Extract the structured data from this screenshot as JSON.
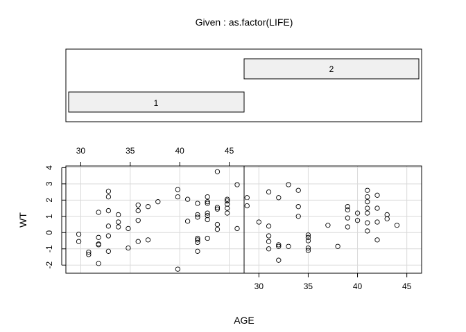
{
  "chart_data": {
    "type": "scatter",
    "title": "Given : as.factor(LIFE)",
    "xlabel": "AGE",
    "ylabel": "WT",
    "grid": true,
    "xlim": [
      28.5,
      46.5
    ],
    "ylim": [
      -2.5,
      4.1
    ],
    "x_ticks": [
      30,
      35,
      40,
      45
    ],
    "y_ticks": [
      -2,
      -1,
      0,
      1,
      2,
      3,
      4
    ],
    "conditioning": {
      "levels": [
        {
          "label": "1",
          "range_index": 0
        },
        {
          "label": "2",
          "range_index": 1
        }
      ]
    },
    "panels": [
      {
        "given": "1",
        "points": [
          [
            29.8,
            -0.1
          ],
          [
            29.8,
            -0.55
          ],
          [
            30.8,
            -1.2
          ],
          [
            30.8,
            -1.35
          ],
          [
            31.8,
            1.25
          ],
          [
            31.8,
            -0.3
          ],
          [
            31.8,
            -0.7
          ],
          [
            31.8,
            -0.75
          ],
          [
            31.8,
            -1.9
          ],
          [
            32.8,
            2.55
          ],
          [
            32.8,
            2.2
          ],
          [
            32.8,
            1.35
          ],
          [
            32.8,
            0.4
          ],
          [
            32.8,
            -0.2
          ],
          [
            32.8,
            -1.15
          ],
          [
            33.8,
            1.1
          ],
          [
            33.8,
            0.65
          ],
          [
            33.8,
            0.35
          ],
          [
            34.8,
            0.25
          ],
          [
            34.8,
            -0.95
          ],
          [
            35.8,
            1.7
          ],
          [
            35.8,
            1.35
          ],
          [
            35.8,
            0.75
          ],
          [
            35.8,
            -0.55
          ],
          [
            36.8,
            1.6
          ],
          [
            36.8,
            -0.45
          ],
          [
            37.8,
            1.9
          ],
          [
            39.8,
            2.65
          ],
          [
            39.8,
            2.2
          ],
          [
            39.8,
            -2.25
          ],
          [
            40.8,
            2.05
          ],
          [
            40.8,
            0.7
          ],
          [
            41.8,
            1.8
          ],
          [
            41.8,
            1.1
          ],
          [
            41.8,
            0.95
          ],
          [
            41.8,
            -0.35
          ],
          [
            41.8,
            -0.45
          ],
          [
            41.8,
            -0.6
          ],
          [
            41.8,
            -1.15
          ],
          [
            42.8,
            2.2
          ],
          [
            42.8,
            1.9
          ],
          [
            42.8,
            1.8
          ],
          [
            42.8,
            1.2
          ],
          [
            42.8,
            1.05
          ],
          [
            42.8,
            0.8
          ],
          [
            42.8,
            -0.35
          ],
          [
            43.8,
            3.75
          ],
          [
            43.8,
            1.55
          ],
          [
            43.8,
            1.45
          ],
          [
            43.8,
            0.5
          ],
          [
            43.8,
            0.2
          ],
          [
            44.8,
            2.05
          ],
          [
            44.8,
            1.95
          ],
          [
            44.8,
            1.75
          ],
          [
            44.8,
            1.5
          ],
          [
            44.8,
            1.2
          ],
          [
            45.8,
            2.95
          ],
          [
            45.8,
            0.25
          ],
          [
            46.8,
            2.15
          ],
          [
            46.8,
            1.65
          ]
        ]
      },
      {
        "given": "2",
        "points": [
          [
            30.0,
            0.65
          ],
          [
            31.0,
            2.5
          ],
          [
            31.0,
            0.4
          ],
          [
            31.0,
            -0.2
          ],
          [
            31.0,
            -0.55
          ],
          [
            31.0,
            -1.0
          ],
          [
            32.0,
            2.15
          ],
          [
            32.0,
            -0.75
          ],
          [
            32.0,
            -0.85
          ],
          [
            32.0,
            -1.7
          ],
          [
            33.0,
            2.95
          ],
          [
            33.0,
            -0.85
          ],
          [
            34.0,
            2.6
          ],
          [
            34.0,
            1.6
          ],
          [
            34.0,
            1.0
          ],
          [
            35.0,
            -0.15
          ],
          [
            35.0,
            -0.3
          ],
          [
            35.0,
            -0.5
          ],
          [
            35.0,
            -0.95
          ],
          [
            35.0,
            -1.1
          ],
          [
            37.0,
            0.45
          ],
          [
            38.0,
            -0.85
          ],
          [
            39.0,
            1.6
          ],
          [
            39.0,
            1.4
          ],
          [
            39.0,
            0.9
          ],
          [
            39.0,
            0.35
          ],
          [
            40.0,
            1.2
          ],
          [
            40.0,
            0.75
          ],
          [
            41.0,
            2.6
          ],
          [
            41.0,
            2.2
          ],
          [
            41.0,
            1.9
          ],
          [
            41.0,
            1.5
          ],
          [
            41.0,
            1.2
          ],
          [
            41.0,
            0.6
          ],
          [
            41.0,
            0.1
          ],
          [
            42.0,
            2.3
          ],
          [
            42.0,
            1.5
          ],
          [
            42.0,
            0.65
          ],
          [
            42.0,
            -0.45
          ],
          [
            43.0,
            1.1
          ],
          [
            43.0,
            0.85
          ],
          [
            44.0,
            0.45
          ]
        ]
      }
    ]
  }
}
